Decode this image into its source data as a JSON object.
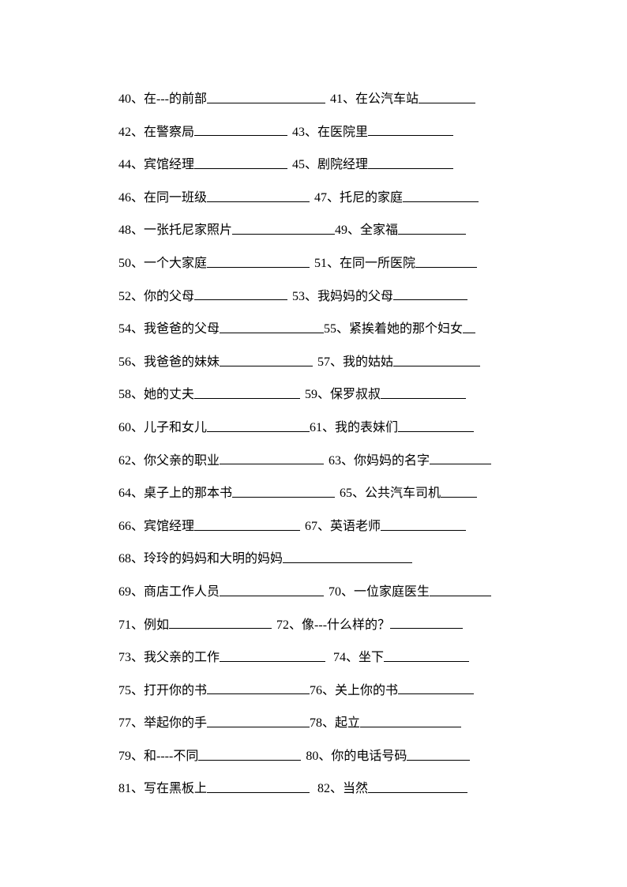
{
  "items": [
    {
      "num": "40",
      "text": "在---的前部",
      "blank": 150,
      "br": false
    },
    {
      "num": "41",
      "text": "在公汽车站",
      "blank": 72,
      "br": true,
      "gap": 6
    },
    {
      "num": "42",
      "text": "在警察局",
      "blank": 118,
      "br": false
    },
    {
      "num": "43",
      "text": "在医院里",
      "blank": 108,
      "br": true,
      "gap": 6
    },
    {
      "num": "44",
      "text": "宾馆经理",
      "blank": 118,
      "br": false
    },
    {
      "num": "45",
      "text": "剧院经理",
      "blank": 108,
      "br": true,
      "gap": 6
    },
    {
      "num": "46",
      "text": "在同一班级",
      "blank": 130,
      "br": false
    },
    {
      "num": "47",
      "text": "托尼的家庭",
      "blank": 96,
      "br": true,
      "gap": 6
    },
    {
      "num": "48",
      "text": "一张托尼家照片",
      "blank": 130,
      "br": false
    },
    {
      "num": "49",
      "text": "全家福",
      "blank": 86,
      "br": true,
      "gap": 0
    },
    {
      "num": "50",
      "text": "一个大家庭",
      "blank": 130,
      "br": false
    },
    {
      "num": "51",
      "text": "在同一所医院",
      "blank": 78,
      "br": true,
      "gap": 6
    },
    {
      "num": "52",
      "text": "你的父母",
      "blank": 118,
      "br": false
    },
    {
      "num": "53",
      "text": "我妈妈的父母",
      "blank": 94,
      "br": true,
      "gap": 6
    },
    {
      "num": "54",
      "text": "我爸爸的父母",
      "blank": 132,
      "br": false
    },
    {
      "num": "55",
      "text": "紧挨着她的那个妇女",
      "blank": 16,
      "br": true,
      "gap": 0
    },
    {
      "num": "56",
      "text": "我爸爸的妹妹",
      "blank": 118,
      "br": false
    },
    {
      "num": "57",
      "text": "我的姑姑",
      "blank": 110,
      "br": true,
      "gap": 6
    },
    {
      "num": "58",
      "text": "她的丈夫",
      "blank": 134,
      "br": false
    },
    {
      "num": "59",
      "text": "保罗叔叔",
      "blank": 108,
      "br": true,
      "gap": 6
    },
    {
      "num": "60",
      "text": "儿子和女儿",
      "blank": 130,
      "br": false
    },
    {
      "num": "61",
      "text": "我的表妹们",
      "blank": 96,
      "br": true,
      "gap": 0
    },
    {
      "num": "62",
      "text": "你父亲的职业",
      "blank": 132,
      "br": false
    },
    {
      "num": "63",
      "text": "你妈妈的名字",
      "blank": 78,
      "br": true,
      "gap": 6
    },
    {
      "num": "64",
      "text": "桌子上的那本书",
      "blank": 130,
      "br": false
    },
    {
      "num": "65",
      "text": "公共汽车司机",
      "blank": 46,
      "br": true,
      "gap": 6
    },
    {
      "num": "66",
      "text": "宾馆经理",
      "blank": 134,
      "br": false
    },
    {
      "num": "67",
      "text": "英语老师",
      "blank": 108,
      "br": true,
      "gap": 6
    },
    {
      "num": "68",
      "text": "玲玲的妈妈和大明的妈妈",
      "blank": 164,
      "br": true
    },
    {
      "num": "69",
      "text": "商店工作人员",
      "blank": 132,
      "br": false
    },
    {
      "num": "70",
      "text": "一位家庭医生",
      "blank": 78,
      "br": true,
      "gap": 6
    },
    {
      "num": "71",
      "text": "例如",
      "blank": 130,
      "br": false
    },
    {
      "num": "72",
      "text": "像---什么样的？",
      "blank": 92,
      "br": true,
      "gap": 6
    },
    {
      "num": "73",
      "text": "我父亲的工作",
      "blank": 134,
      "br": false
    },
    {
      "num": "74",
      "text": "坐下",
      "blank": 108,
      "br": true,
      "gap": 10
    },
    {
      "num": "75",
      "text": "打开你的书",
      "blank": 130,
      "br": false
    },
    {
      "num": "76",
      "text": "关上你的书",
      "blank": 96,
      "br": true,
      "gap": 0
    },
    {
      "num": "77",
      "text": "举起你的手",
      "blank": 130,
      "br": false
    },
    {
      "num": "78",
      "text": "起立",
      "blank": 128,
      "br": true,
      "gap": 0
    },
    {
      "num": "79",
      "text": "和----不同",
      "blank": 130,
      "br": false
    },
    {
      "num": "80",
      "text": "你的电话号码",
      "blank": 80,
      "br": true,
      "gap": 6
    },
    {
      "num": "81",
      "text": "写在黑板上",
      "blank": 130,
      "br": false
    },
    {
      "num": "82",
      "text": "当然",
      "blank": 126,
      "br": true,
      "gap": 10
    }
  ],
  "separator": "、"
}
